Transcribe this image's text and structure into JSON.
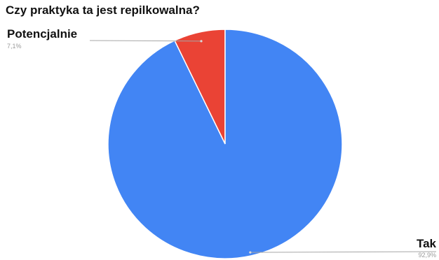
{
  "chart_data": {
    "type": "pie",
    "title": "Czy praktyka ta jest repilkowalna?",
    "slices": [
      {
        "label": "Potencjalnie",
        "value_label": "7,1%",
        "value": 7.1,
        "color": "#EA4335"
      },
      {
        "label": "Tak",
        "value_label": "92,9%",
        "value": 92.9,
        "color": "#4285F4"
      }
    ],
    "start_angle_deg": 0,
    "direction": "counterclockwise",
    "legend": "none",
    "label_style": "leader-lines"
  }
}
